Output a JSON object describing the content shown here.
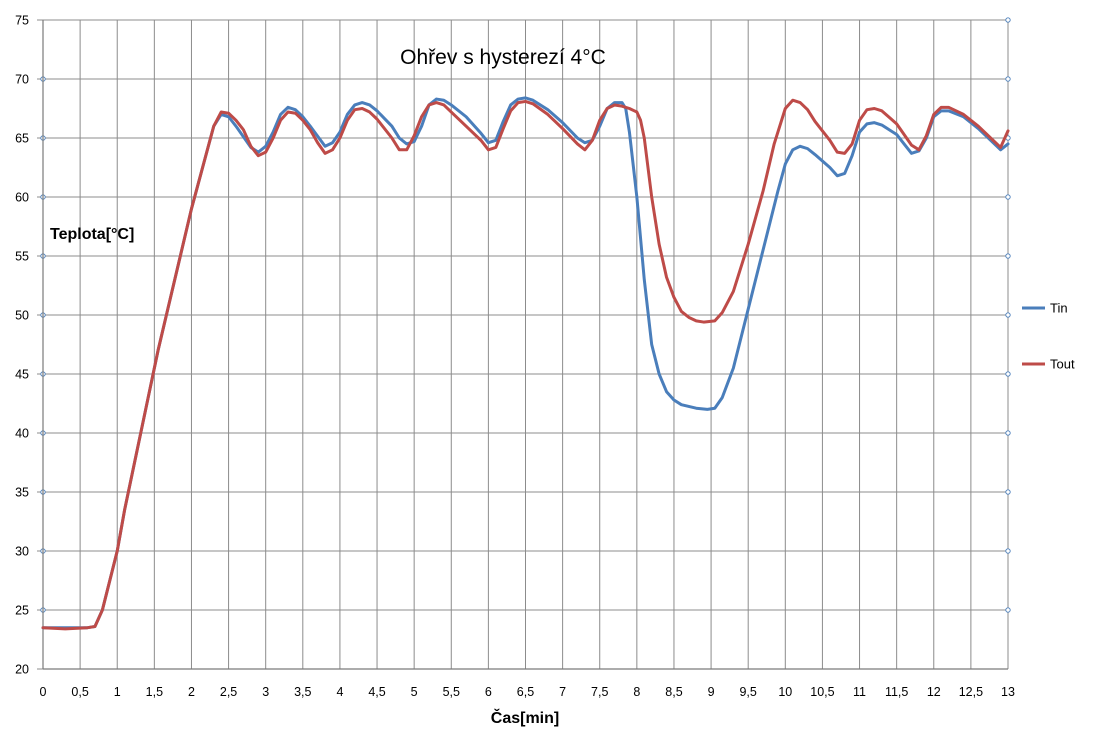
{
  "chart_data": {
    "type": "line",
    "title": "Ohřev s hysterezí 4°C",
    "xlabel": "Čas[min]",
    "ylabel": "Teplota[°C]",
    "xlim": [
      0,
      13
    ],
    "ylim": [
      20,
      75
    ],
    "x_ticks": [
      "0",
      "0,5",
      "1",
      "1,5",
      "2",
      "2,5",
      "3",
      "3,5",
      "4",
      "4,5",
      "5",
      "5,5",
      "6",
      "6,5",
      "7",
      "7,5",
      "8",
      "8,5",
      "9",
      "9,5",
      "10",
      "10,5",
      "11",
      "11,5",
      "12",
      "12,5",
      "13"
    ],
    "y_ticks": [
      "20",
      "25",
      "30",
      "35",
      "40",
      "45",
      "50",
      "55",
      "60",
      "65",
      "70",
      "75"
    ],
    "grid": true,
    "legend_position": "right",
    "series": [
      {
        "name": "Tin",
        "color": "#4a7ebb",
        "points": [
          [
            0,
            23.5
          ],
          [
            0.3,
            23.5
          ],
          [
            0.6,
            23.5
          ],
          [
            0.7,
            23.6
          ],
          [
            0.8,
            25
          ],
          [
            0.9,
            27.5
          ],
          [
            1,
            30
          ],
          [
            1.1,
            33.5
          ],
          [
            1.25,
            38
          ],
          [
            1.4,
            42.5
          ],
          [
            1.55,
            47
          ],
          [
            1.7,
            51
          ],
          [
            1.85,
            55
          ],
          [
            2,
            59
          ],
          [
            2.15,
            62.5
          ],
          [
            2.3,
            66
          ],
          [
            2.4,
            67
          ],
          [
            2.5,
            66.8
          ],
          [
            2.6,
            66
          ],
          [
            2.8,
            64.2
          ],
          [
            2.9,
            63.8
          ],
          [
            3,
            64.3
          ],
          [
            3.1,
            65.5
          ],
          [
            3.2,
            67
          ],
          [
            3.3,
            67.6
          ],
          [
            3.4,
            67.4
          ],
          [
            3.5,
            66.8
          ],
          [
            3.6,
            66
          ],
          [
            3.8,
            64.3
          ],
          [
            3.9,
            64.6
          ],
          [
            4,
            65.5
          ],
          [
            4.1,
            67
          ],
          [
            4.2,
            67.8
          ],
          [
            4.3,
            68
          ],
          [
            4.4,
            67.8
          ],
          [
            4.5,
            67.3
          ],
          [
            4.7,
            66
          ],
          [
            4.8,
            65
          ],
          [
            4.9,
            64.5
          ],
          [
            5,
            64.7
          ],
          [
            5.1,
            66
          ],
          [
            5.2,
            67.8
          ],
          [
            5.3,
            68.3
          ],
          [
            5.4,
            68.2
          ],
          [
            5.5,
            67.8
          ],
          [
            5.7,
            66.8
          ],
          [
            5.9,
            65.4
          ],
          [
            6,
            64.6
          ],
          [
            6.1,
            64.8
          ],
          [
            6.2,
            66.4
          ],
          [
            6.3,
            67.8
          ],
          [
            6.4,
            68.3
          ],
          [
            6.5,
            68.4
          ],
          [
            6.6,
            68.2
          ],
          [
            6.8,
            67.4
          ],
          [
            7,
            66.3
          ],
          [
            7.2,
            65
          ],
          [
            7.3,
            64.6
          ],
          [
            7.4,
            64.8
          ],
          [
            7.5,
            66
          ],
          [
            7.6,
            67.5
          ],
          [
            7.7,
            68
          ],
          [
            7.8,
            68
          ],
          [
            7.85,
            67.5
          ],
          [
            7.9,
            65.5
          ],
          [
            8,
            60
          ],
          [
            8.1,
            53
          ],
          [
            8.2,
            47.5
          ],
          [
            8.3,
            45
          ],
          [
            8.4,
            43.5
          ],
          [
            8.5,
            42.8
          ],
          [
            8.6,
            42.4
          ],
          [
            8.8,
            42.1
          ],
          [
            8.95,
            42
          ],
          [
            9.05,
            42.1
          ],
          [
            9.15,
            43
          ],
          [
            9.3,
            45.5
          ],
          [
            9.5,
            50.5
          ],
          [
            9.7,
            55.5
          ],
          [
            9.9,
            60.5
          ],
          [
            10,
            62.8
          ],
          [
            10.1,
            64
          ],
          [
            10.2,
            64.3
          ],
          [
            10.3,
            64.1
          ],
          [
            10.4,
            63.6
          ],
          [
            10.6,
            62.5
          ],
          [
            10.7,
            61.8
          ],
          [
            10.8,
            62
          ],
          [
            10.9,
            63.5
          ],
          [
            11,
            65.5
          ],
          [
            11.1,
            66.2
          ],
          [
            11.2,
            66.3
          ],
          [
            11.3,
            66.1
          ],
          [
            11.5,
            65.3
          ],
          [
            11.6,
            64.5
          ],
          [
            11.7,
            63.7
          ],
          [
            11.8,
            63.9
          ],
          [
            11.9,
            65
          ],
          [
            12,
            66.8
          ],
          [
            12.1,
            67.3
          ],
          [
            12.2,
            67.3
          ],
          [
            12.4,
            66.8
          ],
          [
            12.6,
            65.8
          ],
          [
            12.8,
            64.6
          ],
          [
            12.9,
            64
          ],
          [
            13,
            64.5
          ]
        ]
      },
      {
        "name": "Tout",
        "color": "#be4b48",
        "points": [
          [
            0,
            23.5
          ],
          [
            0.3,
            23.4
          ],
          [
            0.6,
            23.5
          ],
          [
            0.7,
            23.6
          ],
          [
            0.8,
            25
          ],
          [
            0.9,
            27.5
          ],
          [
            1,
            30
          ],
          [
            1.1,
            33.5
          ],
          [
            1.25,
            38
          ],
          [
            1.4,
            42.5
          ],
          [
            1.55,
            47
          ],
          [
            1.7,
            51
          ],
          [
            1.85,
            55
          ],
          [
            2,
            59
          ],
          [
            2.15,
            62.5
          ],
          [
            2.3,
            66
          ],
          [
            2.4,
            67.2
          ],
          [
            2.5,
            67.1
          ],
          [
            2.6,
            66.5
          ],
          [
            2.7,
            65.7
          ],
          [
            2.8,
            64.3
          ],
          [
            2.9,
            63.5
          ],
          [
            3,
            63.8
          ],
          [
            3.1,
            65
          ],
          [
            3.2,
            66.5
          ],
          [
            3.3,
            67.2
          ],
          [
            3.4,
            67.1
          ],
          [
            3.5,
            66.5
          ],
          [
            3.6,
            65.7
          ],
          [
            3.7,
            64.6
          ],
          [
            3.8,
            63.7
          ],
          [
            3.9,
            64
          ],
          [
            4,
            65
          ],
          [
            4.1,
            66.5
          ],
          [
            4.2,
            67.4
          ],
          [
            4.3,
            67.5
          ],
          [
            4.4,
            67.2
          ],
          [
            4.5,
            66.6
          ],
          [
            4.7,
            65
          ],
          [
            4.8,
            64
          ],
          [
            4.9,
            64
          ],
          [
            5,
            65.2
          ],
          [
            5.1,
            66.8
          ],
          [
            5.2,
            67.8
          ],
          [
            5.3,
            68
          ],
          [
            5.4,
            67.8
          ],
          [
            5.5,
            67.2
          ],
          [
            5.7,
            66
          ],
          [
            5.9,
            64.8
          ],
          [
            6,
            64
          ],
          [
            6.1,
            64.2
          ],
          [
            6.2,
            65.8
          ],
          [
            6.3,
            67.3
          ],
          [
            6.4,
            68
          ],
          [
            6.5,
            68.1
          ],
          [
            6.6,
            67.9
          ],
          [
            6.8,
            67
          ],
          [
            7,
            65.8
          ],
          [
            7.2,
            64.5
          ],
          [
            7.3,
            64
          ],
          [
            7.4,
            64.8
          ],
          [
            7.5,
            66.5
          ],
          [
            7.6,
            67.5
          ],
          [
            7.7,
            67.8
          ],
          [
            7.8,
            67.7
          ],
          [
            7.9,
            67.5
          ],
          [
            8,
            67.2
          ],
          [
            8.05,
            66.5
          ],
          [
            8.1,
            65
          ],
          [
            8.2,
            60
          ],
          [
            8.3,
            56
          ],
          [
            8.4,
            53.2
          ],
          [
            8.5,
            51.5
          ],
          [
            8.6,
            50.3
          ],
          [
            8.7,
            49.8
          ],
          [
            8.8,
            49.5
          ],
          [
            8.9,
            49.4
          ],
          [
            9.05,
            49.5
          ],
          [
            9.15,
            50.2
          ],
          [
            9.3,
            52
          ],
          [
            9.5,
            56
          ],
          [
            9.7,
            60.5
          ],
          [
            9.85,
            64.5
          ],
          [
            10,
            67.5
          ],
          [
            10.1,
            68.2
          ],
          [
            10.2,
            68
          ],
          [
            10.3,
            67.4
          ],
          [
            10.4,
            66.4
          ],
          [
            10.6,
            64.8
          ],
          [
            10.7,
            63.8
          ],
          [
            10.8,
            63.7
          ],
          [
            10.9,
            64.5
          ],
          [
            11,
            66.5
          ],
          [
            11.1,
            67.4
          ],
          [
            11.2,
            67.5
          ],
          [
            11.3,
            67.3
          ],
          [
            11.5,
            66.2
          ],
          [
            11.6,
            65.3
          ],
          [
            11.7,
            64.4
          ],
          [
            11.8,
            64
          ],
          [
            11.9,
            65.2
          ],
          [
            12,
            67
          ],
          [
            12.1,
            67.6
          ],
          [
            12.2,
            67.6
          ],
          [
            12.4,
            67
          ],
          [
            12.6,
            66
          ],
          [
            12.8,
            64.8
          ],
          [
            12.9,
            64.2
          ],
          [
            13,
            65.6
          ]
        ]
      }
    ]
  }
}
